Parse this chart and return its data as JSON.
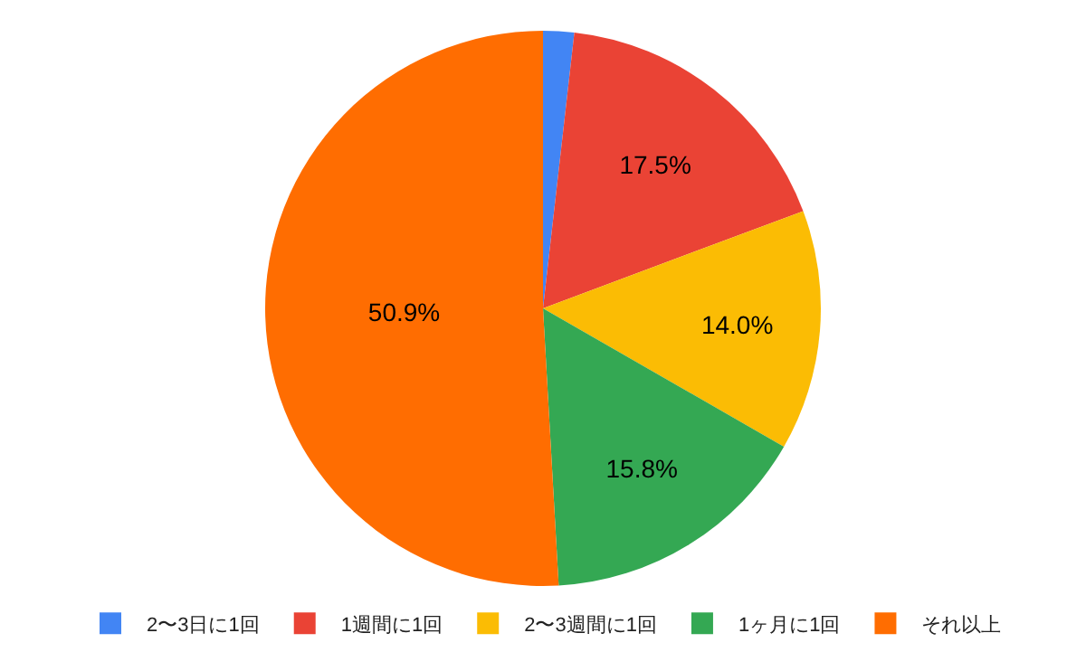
{
  "chart_data": {
    "type": "pie",
    "categories": [
      "2〜3日に1回",
      "1週間に1回",
      "2〜3週間に1回",
      "1ヶ月に1回",
      "それ以上"
    ],
    "values": [
      1.8,
      17.5,
      14.0,
      15.8,
      50.9
    ],
    "value_labels": [
      null,
      "17.5%",
      "14.0%",
      "15.8%",
      "50.9%"
    ],
    "colors": [
      "#4285f4",
      "#ea4335",
      "#fbbc04",
      "#34a853",
      "#ff6d01"
    ],
    "legend": "bottom"
  }
}
